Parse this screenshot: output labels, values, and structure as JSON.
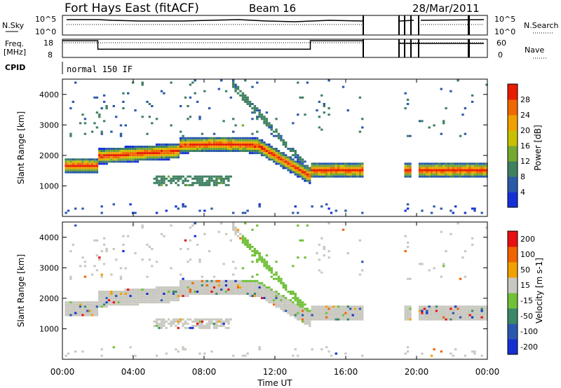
{
  "header": {
    "station": "Fort Hays East (fitACF)",
    "beam": "Beam 16",
    "date": "28/Mar/2011"
  },
  "chart_data": [
    {
      "name": "noise",
      "type": "line",
      "left_label": "N.Sky",
      "right_label": "N.Search",
      "left_ticks": [
        "10^5",
        "10^0"
      ],
      "right_ticks": [
        "10^5",
        "10^0"
      ]
    },
    {
      "name": "frequency",
      "type": "line",
      "left_label": "Freq.",
      "left_units": "[MHz]",
      "right_label": "Nave",
      "left_ticks": [
        "18",
        "8"
      ],
      "right_ticks": [
        "60",
        "0"
      ],
      "series": [
        {
          "name": "Freq",
          "x": [
            0.0,
            2.0,
            2.0,
            14.0,
            14.0,
            17.0
          ],
          "values": [
            17.2,
            17.2,
            12.5,
            12.5,
            17.2,
            17.2
          ]
        }
      ]
    },
    {
      "name": "cpid",
      "label": "CPID",
      "text": "normal 150 IF"
    },
    {
      "name": "power",
      "type": "heatmap",
      "ylabel": "Slant Range [km]",
      "ylim": [
        0,
        4500
      ],
      "yticks": [
        "1000",
        "2000",
        "3000",
        "4000"
      ],
      "colorbar_label": "Power [dB]",
      "colorbar_ticks": [
        "4",
        "8",
        "12",
        "16",
        "20",
        "24",
        "28"
      ],
      "colors": [
        "#1530d8",
        "#2a5aa8",
        "#3f8060",
        "#74a830",
        "#c8c000",
        "#f0a000",
        "#f06800",
        "#e81c00"
      ]
    },
    {
      "name": "velocity",
      "type": "heatmap",
      "ylabel": "Slant Range [km]",
      "ylim": [
        0,
        4500
      ],
      "yticks": [
        "1000",
        "2000",
        "3000",
        "4000"
      ],
      "colorbar_label": "Velocity [m s-1]",
      "colorbar_ticks": [
        "200",
        "100",
        "50",
        "15",
        "-15",
        "-50",
        "-100",
        "-200"
      ],
      "colors": [
        "#1530d0",
        "#2a58b0",
        "#3a8868",
        "#70c038",
        "#c8c8c0",
        "#f0a000",
        "#f06400",
        "#e81010"
      ]
    }
  ],
  "x_axis": {
    "label": "Time UT",
    "ticks": [
      "00:00",
      "04:00",
      "08:00",
      "12:00",
      "16:00",
      "20:00",
      "00:00"
    ]
  }
}
